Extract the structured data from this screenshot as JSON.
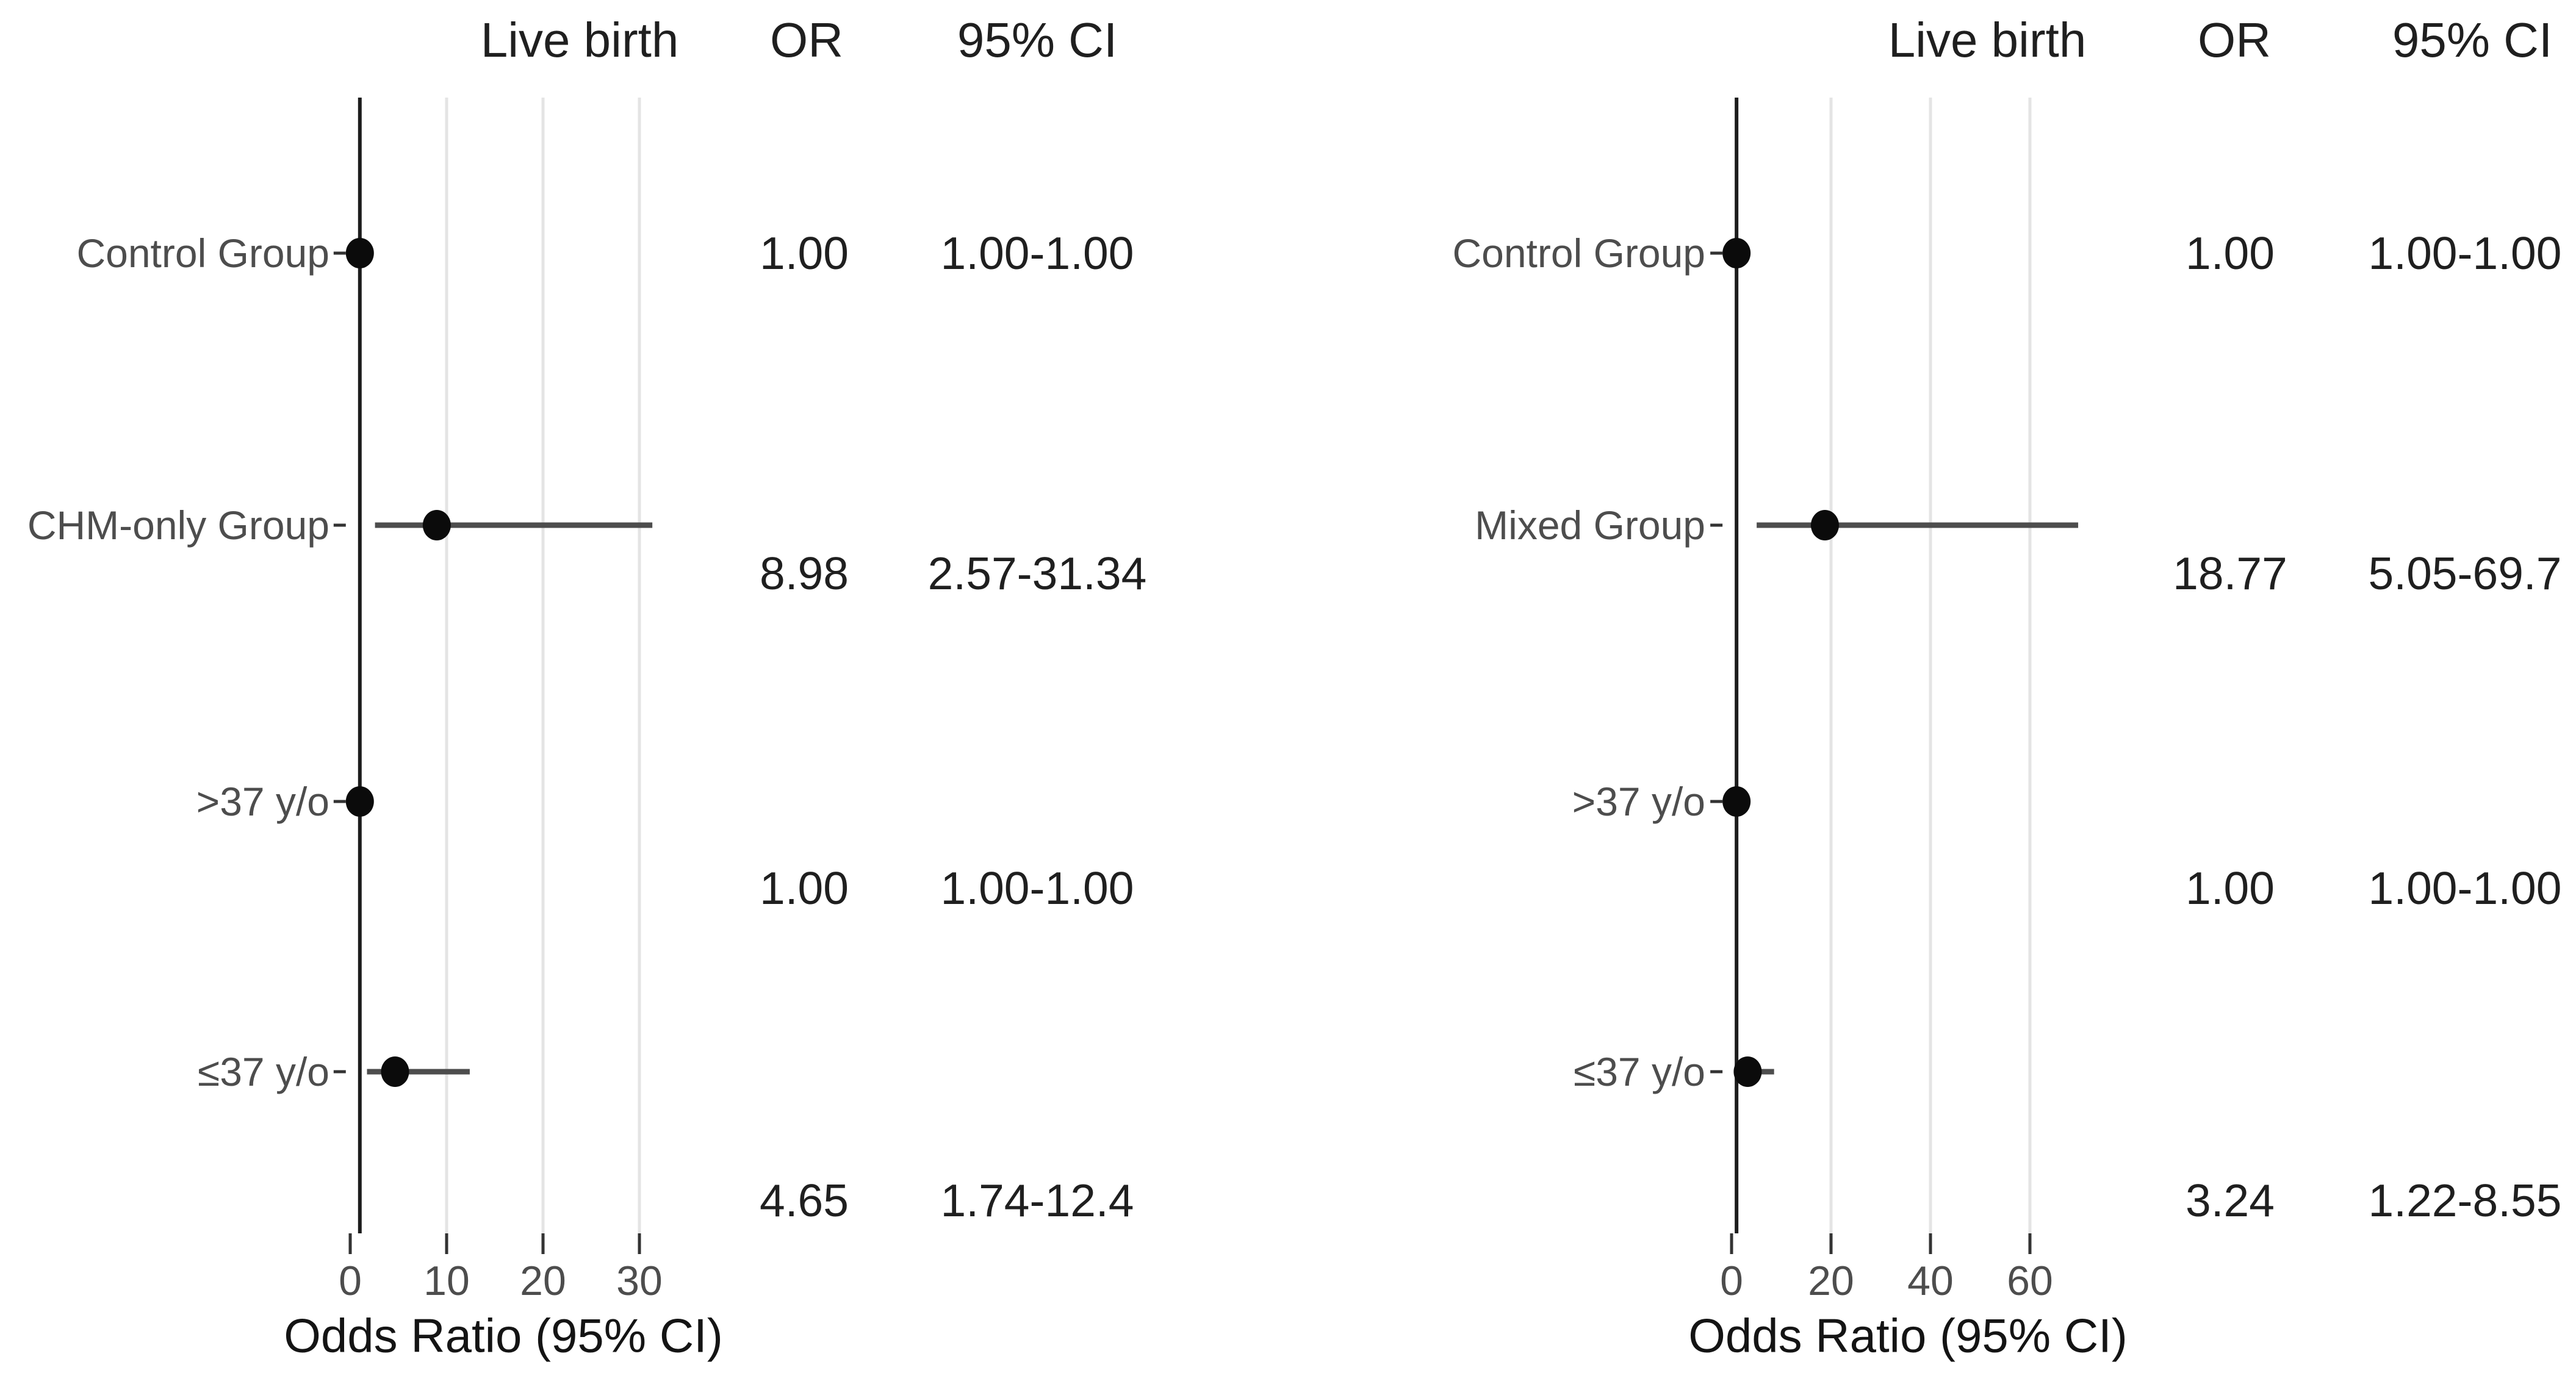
{
  "figure": {
    "background": "#ffffff",
    "colors": {
      "marker": "#0b0b0b",
      "ci_line": "#4d4d4d",
      "reference_line": "#1c1c1c",
      "grid_line": "#e4e4e4",
      "tick": "#333333",
      "label_text": "#4d4d4d",
      "value_text": "#1f1f1f"
    }
  },
  "chart_data": [
    {
      "type": "scatter",
      "subtype": "forest-plot",
      "panel": "left",
      "title": "Live birth",
      "columns": {
        "or": "OR",
        "ci": "95% CI"
      },
      "xlabel": "Odds Ratio (95% CI)",
      "xticks": [
        0,
        10,
        20,
        30
      ],
      "xlim": [
        -1.5,
        36
      ],
      "grid": true,
      "reference_line_x": 1,
      "rows": [
        {
          "label": "Control Group",
          "or": 1.0,
          "ci_low": 1.0,
          "ci_high": 1.0,
          "or_text": "1.00",
          "ci_text": "1.00-1.00"
        },
        {
          "label": "CHM-only Group",
          "or": 8.98,
          "ci_low": 2.57,
          "ci_high": 31.34,
          "or_text": "8.98",
          "ci_text": "2.57-31.34"
        },
        {
          "label": ">37 y/o",
          "or": 1.0,
          "ci_low": 1.0,
          "ci_high": 1.0,
          "or_text": "1.00",
          "ci_text": "1.00-1.00"
        },
        {
          "label": "≤37 y/o",
          "or": 4.65,
          "ci_low": 1.74,
          "ci_high": 12.4,
          "or_text": "4.65",
          "ci_text": "1.74-12.4"
        }
      ]
    },
    {
      "type": "scatter",
      "subtype": "forest-plot",
      "panel": "right",
      "title": "Live birth",
      "columns": {
        "or": "OR",
        "ci": "95% CI"
      },
      "xlabel": "Odds Ratio (95% CI)",
      "xticks": [
        0,
        20,
        40,
        60
      ],
      "xlim": [
        -3,
        72
      ],
      "grid": true,
      "reference_line_x": 1,
      "rows": [
        {
          "label": "Control Group",
          "or": 1.0,
          "ci_low": 1.0,
          "ci_high": 1.0,
          "or_text": "1.00",
          "ci_text": "1.00-1.00"
        },
        {
          "label": "Mixed Group",
          "or": 18.77,
          "ci_low": 5.05,
          "ci_high": 69.7,
          "or_text": "18.77",
          "ci_text": "5.05-69.7"
        },
        {
          "label": ">37 y/o",
          "or": 1.0,
          "ci_low": 1.0,
          "ci_high": 1.0,
          "or_text": "1.00",
          "ci_text": "1.00-1.00"
        },
        {
          "label": "≤37 y/o",
          "or": 3.24,
          "ci_low": 1.22,
          "ci_high": 8.55,
          "or_text": "3.24",
          "ci_text": "1.22-8.55"
        }
      ]
    }
  ]
}
